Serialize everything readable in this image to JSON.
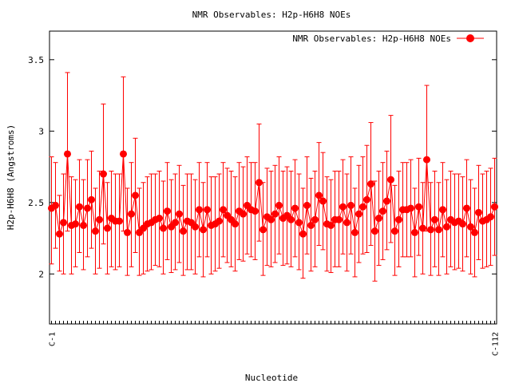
{
  "colors": {
    "series": "#ff0000",
    "axis": "#000000",
    "background": "#ffffff"
  },
  "chart_data": {
    "type": "line",
    "title": "NMR Observables: H2p-H6H8 NOEs",
    "xlabel": "Nucleotide",
    "ylabel": "H2p-H6H8 (Angstroms)",
    "ylim": [
      1.65,
      3.7
    ],
    "yticks": [
      2,
      2.5,
      3,
      3.5
    ],
    "ytick_labels": [
      "2",
      "2.5",
      "3",
      "3.5"
    ],
    "grid": false,
    "legend": {
      "position": "top-right",
      "entries": [
        "NMR Observables: H2p-H6H8 NOEs"
      ]
    },
    "x_first_label": "C-1",
    "x_last_label": "C-112",
    "series": [
      {
        "name": "NMR Observables: H2p-H6H8 NOEs",
        "color": "#ff0000",
        "marker": "circle",
        "y": [
          2.46,
          2.48,
          2.28,
          2.36,
          2.84,
          2.34,
          2.35,
          2.47,
          2.34,
          2.46,
          2.52,
          2.3,
          2.38,
          2.7,
          2.32,
          2.39,
          2.37,
          2.37,
          2.84,
          2.29,
          2.42,
          2.55,
          2.29,
          2.32,
          2.35,
          2.36,
          2.38,
          2.39,
          2.32,
          2.44,
          2.33,
          2.36,
          2.42,
          2.3,
          2.37,
          2.36,
          2.33,
          2.45,
          2.31,
          2.45,
          2.34,
          2.35,
          2.37,
          2.45,
          2.41,
          2.38,
          2.35,
          2.44,
          2.42,
          2.48,
          2.45,
          2.44,
          2.64,
          2.31,
          2.4,
          2.38,
          2.42,
          2.48,
          2.39,
          2.41,
          2.38,
          2.46,
          2.36,
          2.28,
          2.48,
          2.34,
          2.38,
          2.55,
          2.51,
          2.35,
          2.34,
          2.38,
          2.38,
          2.47,
          2.36,
          2.48,
          2.29,
          2.42,
          2.47,
          2.52,
          2.63,
          2.3,
          2.39,
          2.44,
          2.51,
          2.66,
          2.3,
          2.38,
          2.45,
          2.45,
          2.46,
          2.29,
          2.47,
          2.32,
          2.8,
          2.31,
          2.38,
          2.31,
          2.45,
          2.33,
          2.38,
          2.36,
          2.37,
          2.35,
          2.46,
          2.33,
          2.29,
          2.43,
          2.37,
          2.38,
          2.4,
          2.47
        ],
        "err_low": [
          2.07,
          2.18,
          2.02,
          2.0,
          2.3,
          2.0,
          2.05,
          2.15,
          2.03,
          2.12,
          2.18,
          2.0,
          2.04,
          2.21,
          2.0,
          2.05,
          2.03,
          2.05,
          2.3,
          1.99,
          2.05,
          2.15,
          1.99,
          2.0,
          2.02,
          2.03,
          2.06,
          2.05,
          2.0,
          2.1,
          2.01,
          2.03,
          2.08,
          1.99,
          2.03,
          2.03,
          2.0,
          2.12,
          1.98,
          2.12,
          2.0,
          2.02,
          2.04,
          2.12,
          2.08,
          2.05,
          2.02,
          2.1,
          2.09,
          2.14,
          2.12,
          2.1,
          2.23,
          1.99,
          2.06,
          2.05,
          2.08,
          2.14,
          2.06,
          2.07,
          2.05,
          2.12,
          2.03,
          1.97,
          2.14,
          2.02,
          2.05,
          2.2,
          2.17,
          2.02,
          2.01,
          2.05,
          2.05,
          2.14,
          2.02,
          2.14,
          1.98,
          2.08,
          2.14,
          2.15,
          2.2,
          1.95,
          2.06,
          2.1,
          2.17,
          2.22,
          1.99,
          2.05,
          2.12,
          2.12,
          2.12,
          1.98,
          2.13,
          2.0,
          2.3,
          1.99,
          2.05,
          1.99,
          2.12,
          2.0,
          2.05,
          2.03,
          2.04,
          2.02,
          2.12,
          2.0,
          1.98,
          2.1,
          2.04,
          2.05,
          2.06,
          2.13
        ],
        "err_high": [
          2.82,
          2.78,
          2.55,
          2.7,
          3.41,
          2.68,
          2.66,
          2.8,
          2.66,
          2.8,
          2.86,
          2.6,
          2.72,
          3.19,
          2.64,
          2.72,
          2.7,
          2.7,
          3.38,
          2.6,
          2.78,
          2.95,
          2.6,
          2.64,
          2.68,
          2.7,
          2.7,
          2.72,
          2.65,
          2.78,
          2.66,
          2.7,
          2.76,
          2.62,
          2.7,
          2.7,
          2.66,
          2.78,
          2.64,
          2.78,
          2.68,
          2.68,
          2.7,
          2.78,
          2.74,
          2.72,
          2.68,
          2.78,
          2.75,
          2.82,
          2.78,
          2.78,
          3.05,
          2.64,
          2.74,
          2.72,
          2.76,
          2.82,
          2.72,
          2.75,
          2.72,
          2.8,
          2.7,
          2.6,
          2.82,
          2.67,
          2.72,
          2.92,
          2.85,
          2.68,
          2.66,
          2.72,
          2.72,
          2.8,
          2.7,
          2.82,
          2.6,
          2.76,
          2.82,
          2.9,
          3.06,
          2.65,
          2.72,
          2.78,
          2.86,
          3.11,
          2.62,
          2.72,
          2.78,
          2.78,
          2.8,
          2.6,
          2.81,
          2.64,
          3.32,
          2.64,
          2.72,
          2.64,
          2.78,
          2.66,
          2.72,
          2.7,
          2.7,
          2.68,
          2.8,
          2.66,
          2.6,
          2.76,
          2.7,
          2.72,
          2.74,
          2.81
        ]
      }
    ]
  }
}
